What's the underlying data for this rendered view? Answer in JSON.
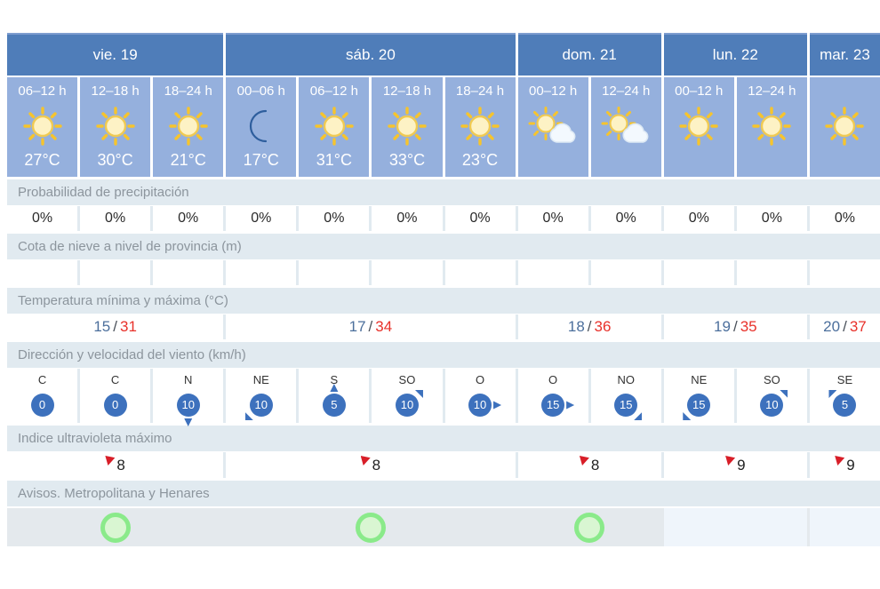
{
  "colors": {
    "day_header_bg": "#4f7db9",
    "forecast_cell_bg": "#95b0dd",
    "section_band_bg": "#e1eaf0",
    "min_temp": "#4c6f9c",
    "max_temp": "#e8312a",
    "wind_circle": "#3d71bd",
    "uv_flag": "#d81e28",
    "warning_green_border": "#8aea8a",
    "warning_green_fill": "#d9f6d2"
  },
  "days": [
    {
      "label": "vie. 19",
      "span": 3
    },
    {
      "label": "sáb. 20",
      "span": 4
    },
    {
      "label": "dom. 21",
      "span": 2
    },
    {
      "label": "lun. 22",
      "span": 2
    },
    {
      "label": "mar. 23",
      "span": 1
    }
  ],
  "slots": [
    {
      "time": "06–12 h",
      "icon": "sun",
      "temp": "27°C"
    },
    {
      "time": "12–18 h",
      "icon": "sun",
      "temp": "30°C"
    },
    {
      "time": "18–24 h",
      "icon": "sun",
      "temp": "21°C"
    },
    {
      "time": "00–06 h",
      "icon": "moon",
      "temp": "17°C"
    },
    {
      "time": "06–12 h",
      "icon": "sun",
      "temp": "31°C"
    },
    {
      "time": "12–18 h",
      "icon": "sun",
      "temp": "33°C"
    },
    {
      "time": "18–24 h",
      "icon": "sun",
      "temp": "23°C"
    },
    {
      "time": "00–12 h",
      "icon": "sun-cloud",
      "temp": ""
    },
    {
      "time": "12–24 h",
      "icon": "sun-cloud",
      "temp": ""
    },
    {
      "time": "00–12 h",
      "icon": "sun",
      "temp": ""
    },
    {
      "time": "12–24 h",
      "icon": "sun",
      "temp": ""
    },
    {
      "time": "",
      "icon": "sun",
      "temp": ""
    }
  ],
  "sections": {
    "precipitation": {
      "label": "Probabilidad de precipitación",
      "values": [
        "0%",
        "0%",
        "0%",
        "0%",
        "0%",
        "0%",
        "0%",
        "0%",
        "0%",
        "0%",
        "0%",
        "0%"
      ]
    },
    "snow": {
      "label": "Cota de nieve a nivel de provincia (m)",
      "values": [
        "",
        "",
        "",
        "",
        "",
        "",
        "",
        "",
        "",
        "",
        "",
        ""
      ]
    },
    "temperature": {
      "label": "Temperatura mínima y máxima (°C)",
      "values": [
        {
          "min": "15",
          "sep": "/",
          "max": "31"
        },
        {
          "min": "17",
          "sep": "/",
          "max": "34"
        },
        {
          "min": "18",
          "sep": "/",
          "max": "36"
        },
        {
          "min": "19",
          "sep": "/",
          "max": "35"
        },
        {
          "min": "20",
          "sep": "/",
          "max": "37"
        }
      ]
    },
    "wind": {
      "label": "Dirección y velocidad del viento (km/h)",
      "values": [
        {
          "dir": "C",
          "speed": "0",
          "arrow": "none"
        },
        {
          "dir": "C",
          "speed": "0",
          "arrow": "none"
        },
        {
          "dir": "N",
          "speed": "10",
          "arrow": "down"
        },
        {
          "dir": "NE",
          "speed": "10",
          "arrow": "down-left"
        },
        {
          "dir": "S",
          "speed": "5",
          "arrow": "up"
        },
        {
          "dir": "SO",
          "speed": "10",
          "arrow": "up-right"
        },
        {
          "dir": "O",
          "speed": "10",
          "arrow": "right"
        },
        {
          "dir": "O",
          "speed": "15",
          "arrow": "right"
        },
        {
          "dir": "NO",
          "speed": "15",
          "arrow": "down-right"
        },
        {
          "dir": "NE",
          "speed": "15",
          "arrow": "down-left"
        },
        {
          "dir": "SO",
          "speed": "10",
          "arrow": "up-right"
        },
        {
          "dir": "SE",
          "speed": "5",
          "arrow": "up-left"
        }
      ]
    },
    "uv": {
      "label": "Indice ultravioleta máximo",
      "values": [
        "8",
        "8",
        "8",
        "9",
        "9"
      ]
    },
    "warnings": {
      "label": "Avisos. Metropolitana y Henares",
      "values": [
        {
          "status": "green-circle"
        },
        {
          "status": "green-circle"
        },
        {
          "status": "green-circle"
        },
        {
          "status": "none"
        },
        {
          "status": "none"
        }
      ]
    }
  }
}
